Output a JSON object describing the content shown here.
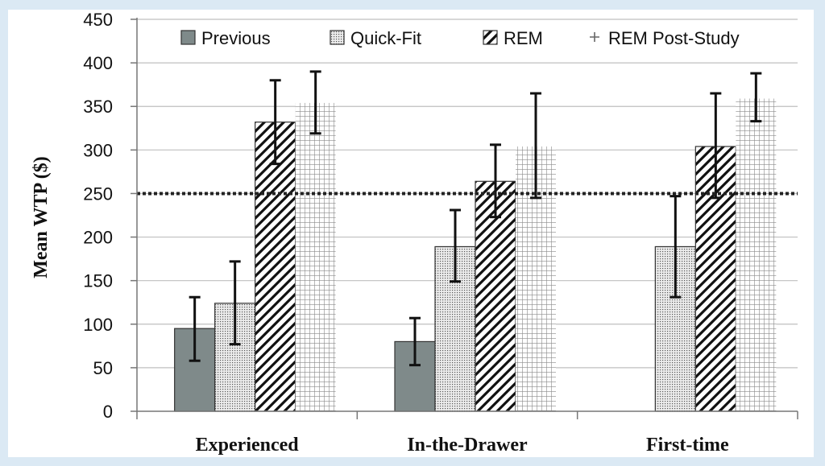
{
  "chart_data": {
    "type": "bar",
    "ylabel": "Mean WTP ($)",
    "xlabel": "",
    "ylim": [
      0,
      450
    ],
    "yticks": [
      0,
      50,
      100,
      150,
      200,
      250,
      300,
      350,
      400,
      450
    ],
    "categories": [
      "Experienced",
      "In-the-Drawer",
      "First-time"
    ],
    "legend_position": "top",
    "grid": "horizontal",
    "reference_line": 250,
    "series": [
      {
        "name": "Previous",
        "values": [
          95,
          80,
          null
        ],
        "error_low": [
          58,
          53,
          null
        ],
        "error_high": [
          131,
          107,
          null
        ],
        "fill": "solid",
        "color": "#7f8a8a"
      },
      {
        "name": "Quick-Fit",
        "values": [
          124,
          189,
          189
        ],
        "error_low": [
          77,
          149,
          131
        ],
        "error_high": [
          172,
          231,
          247
        ],
        "fill": "dots",
        "color": "#d9d9d9"
      },
      {
        "name": "REM",
        "values": [
          332,
          264,
          304
        ],
        "error_low": [
          284,
          223,
          245
        ],
        "error_high": [
          380,
          306,
          365
        ],
        "fill": "diagonal",
        "color": "#111111"
      },
      {
        "name": "REM Post-Study",
        "values": [
          354,
          304,
          359
        ],
        "error_low": [
          319,
          245,
          333
        ],
        "error_high": [
          390,
          365,
          388
        ],
        "fill": "grid",
        "color": "#8a8a8a"
      }
    ]
  }
}
